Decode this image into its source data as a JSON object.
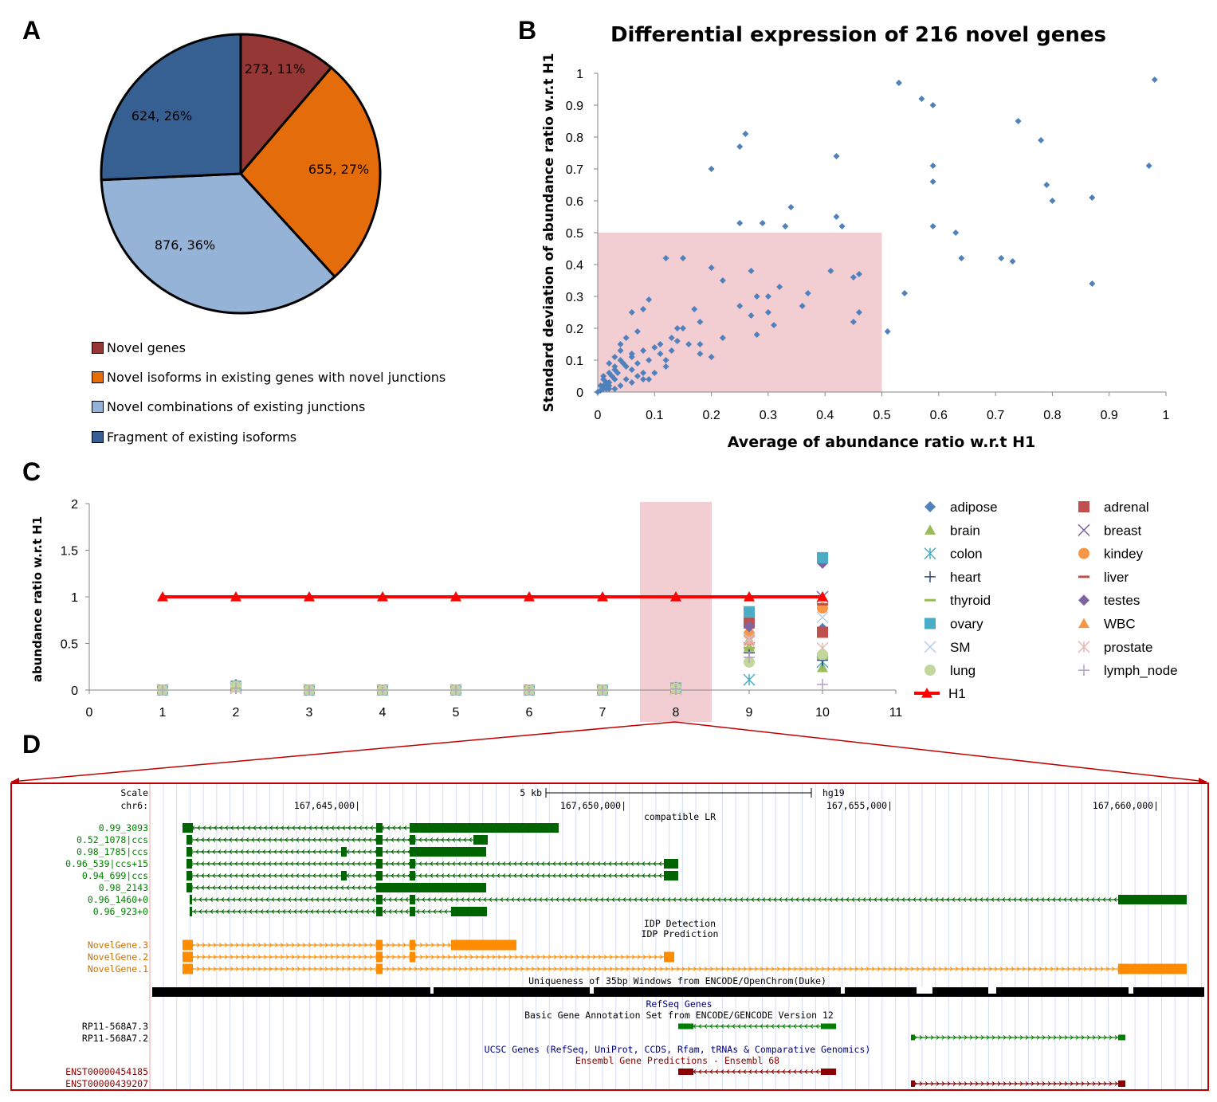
{
  "panels": {
    "a": "A",
    "b": "B",
    "c": "C",
    "d": "D"
  },
  "chart_data": [
    {
      "type": "pie",
      "labels": [
        "Novel genes",
        "Novel isoforms in existing genes with novel junctions",
        "Novel combinations of existing junctions",
        "Fragment of existing isoforms"
      ],
      "values": [
        273,
        655,
        876,
        624
      ],
      "data_labels": [
        "273, 11%",
        "655, 27%",
        "876, 36%",
        "624, 26%"
      ],
      "colors": [
        "#953735",
        "#e46c0a",
        "#95b3d7",
        "#376092"
      ],
      "legend_position": "bottom"
    },
    {
      "type": "scatter",
      "title": "Differential expression of 216 novel genes",
      "xlabel": "Average of abundance  ratio w.r.t H1",
      "ylabel": "Standard deviation of abundance ratio w.r.t H1",
      "xlim": [
        0,
        1
      ],
      "ylim": [
        0,
        1
      ],
      "xticks": [
        "0",
        "0.1",
        "0.2",
        "0.3",
        "0.4",
        "0.5",
        "0.6",
        "0.7",
        "0.8",
        "0.9",
        "1"
      ],
      "yticks": [
        "0",
        "0.1",
        "0.2",
        "0.3",
        "0.4",
        "0.5",
        "0.6",
        "0.7",
        "0.8",
        "0.9",
        "1"
      ],
      "highlight_region": {
        "x": [
          0,
          0.5
        ],
        "y": [
          0,
          0.5
        ],
        "color": "#f2cdd1"
      },
      "marker_color": "#4f81bd",
      "points": [
        [
          0.53,
          0.97
        ],
        [
          0.57,
          0.92
        ],
        [
          0.59,
          0.9
        ],
        [
          0.98,
          0.98
        ],
        [
          0.74,
          0.85
        ],
        [
          0.26,
          0.81
        ],
        [
          0.25,
          0.77
        ],
        [
          0.78,
          0.79
        ],
        [
          0.42,
          0.74
        ],
        [
          0.2,
          0.7
        ],
        [
          0.59,
          0.71
        ],
        [
          0.97,
          0.71
        ],
        [
          0.59,
          0.66
        ],
        [
          0.79,
          0.65
        ],
        [
          0.87,
          0.61
        ],
        [
          0.8,
          0.6
        ],
        [
          0.34,
          0.58
        ],
        [
          0.42,
          0.55
        ],
        [
          0.25,
          0.53
        ],
        [
          0.29,
          0.53
        ],
        [
          0.33,
          0.52
        ],
        [
          0.43,
          0.52
        ],
        [
          0.59,
          0.52
        ],
        [
          0.63,
          0.5
        ],
        [
          0.64,
          0.42
        ],
        [
          0.71,
          0.42
        ],
        [
          0.73,
          0.41
        ],
        [
          0.12,
          0.42
        ],
        [
          0.15,
          0.42
        ],
        [
          0.2,
          0.39
        ],
        [
          0.22,
          0.35
        ],
        [
          0.27,
          0.38
        ],
        [
          0.41,
          0.38
        ],
        [
          0.46,
          0.37
        ],
        [
          0.45,
          0.36
        ],
        [
          0.87,
          0.34
        ],
        [
          0.32,
          0.33
        ],
        [
          0.28,
          0.3
        ],
        [
          0.3,
          0.3
        ],
        [
          0.37,
          0.31
        ],
        [
          0.54,
          0.31
        ],
        [
          0.09,
          0.29
        ],
        [
          0.08,
          0.26
        ],
        [
          0.06,
          0.25
        ],
        [
          0.17,
          0.26
        ],
        [
          0.25,
          0.27
        ],
        [
          0.36,
          0.27
        ],
        [
          0.27,
          0.24
        ],
        [
          0.3,
          0.25
        ],
        [
          0.45,
          0.22
        ],
        [
          0.46,
          0.25
        ],
        [
          0.18,
          0.22
        ],
        [
          0.15,
          0.2
        ],
        [
          0.07,
          0.19
        ],
        [
          0.14,
          0.2
        ],
        [
          0.28,
          0.18
        ],
        [
          0.31,
          0.21
        ],
        [
          0.51,
          0.19
        ],
        [
          0.05,
          0.17
        ],
        [
          0.22,
          0.17
        ],
        [
          0.14,
          0.16
        ],
        [
          0.04,
          0.15
        ],
        [
          0.1,
          0.14
        ],
        [
          0.16,
          0.15
        ],
        [
          0.18,
          0.15
        ],
        [
          0.13,
          0.13
        ],
        [
          0.04,
          0.13
        ],
        [
          0.08,
          0.13
        ],
        [
          0.18,
          0.12
        ],
        [
          0.2,
          0.11
        ],
        [
          0.11,
          0.12
        ],
        [
          0.06,
          0.11
        ],
        [
          0.09,
          0.1
        ],
        [
          0.03,
          0.11
        ],
        [
          0.07,
          0.09
        ],
        [
          0.12,
          0.1
        ],
        [
          0.02,
          0.09
        ],
        [
          0.05,
          0.08
        ],
        [
          0.12,
          0.08
        ],
        [
          0.03,
          0.07
        ],
        [
          0.06,
          0.07
        ],
        [
          0.08,
          0.06
        ],
        [
          0.02,
          0.06
        ],
        [
          0.01,
          0.05
        ],
        [
          0.03,
          0.04
        ],
        [
          0.05,
          0.04
        ],
        [
          0.08,
          0.04
        ],
        [
          0.02,
          0.03
        ],
        [
          0.04,
          0.02
        ],
        [
          0.01,
          0.02
        ],
        [
          0.03,
          0.01
        ],
        [
          0.02,
          0.01
        ],
        [
          0.005,
          0.005
        ],
        [
          0.01,
          0.01
        ],
        [
          0.015,
          0.03
        ],
        [
          0.025,
          0.05
        ],
        [
          0.035,
          0.06
        ],
        [
          0.045,
          0.09
        ],
        [
          0.01,
          0.04
        ],
        [
          0.02,
          0.02
        ],
        [
          0.06,
          0.03
        ],
        [
          0.07,
          0.05
        ],
        [
          0.0,
          0.0
        ],
        [
          0.005,
          0.02
        ],
        [
          0.015,
          0.01
        ],
        [
          0.04,
          0.1
        ],
        [
          0.03,
          0.08
        ],
        [
          0.1,
          0.06
        ],
        [
          0.09,
          0.04
        ],
        [
          0.06,
          0.12
        ],
        [
          0.11,
          0.15
        ],
        [
          0.13,
          0.17
        ]
      ]
    },
    {
      "type": "line",
      "ylabel": "abundance ratio w.r.t H1",
      "xlim": [
        0,
        11
      ],
      "ylim": [
        0,
        2
      ],
      "xticks": [
        "0",
        "1",
        "2",
        "3",
        "4",
        "5",
        "6",
        "7",
        "8",
        "9",
        "10",
        "11"
      ],
      "yticks": [
        "0",
        "0.5",
        "1",
        "1.5",
        "2"
      ],
      "highlight_x": 8,
      "highlight_color": "#f2cdd1",
      "series": [
        {
          "name": "adipose",
          "marker": "diamond",
          "color": "#4f81bd",
          "x": [
            1,
            2,
            3,
            4,
            5,
            6,
            7,
            8,
            9,
            10
          ],
          "values": [
            0,
            0.06,
            0,
            0,
            0,
            0,
            0,
            0.03,
            0.62,
            0.66
          ]
        },
        {
          "name": "adrenal",
          "marker": "square",
          "color": "#c0504d",
          "x": [
            1,
            2,
            3,
            4,
            5,
            6,
            7,
            8,
            9,
            10
          ],
          "values": [
            0,
            0.04,
            0,
            0,
            0,
            0,
            0,
            0.02,
            0.72,
            0.62
          ]
        },
        {
          "name": "brain",
          "marker": "triangle",
          "color": "#9bbb59",
          "x": [
            1,
            2,
            3,
            4,
            5,
            6,
            7,
            8,
            9,
            10
          ],
          "values": [
            0,
            0.05,
            0,
            0,
            0,
            0,
            0,
            0.02,
            0.46,
            0.24
          ]
        },
        {
          "name": "breast",
          "marker": "x",
          "color": "#8064a2",
          "x": [
            1,
            2,
            3,
            4,
            5,
            6,
            7,
            8,
            9,
            10
          ],
          "values": [
            0,
            0.03,
            0,
            0,
            0,
            0,
            0,
            0.01,
            0.66,
            1.0
          ]
        },
        {
          "name": "colon",
          "marker": "star",
          "color": "#4bacc6",
          "x": [
            1,
            2,
            3,
            4,
            5,
            6,
            7,
            8,
            9,
            10
          ],
          "values": [
            0,
            0.02,
            0,
            0,
            0,
            0,
            0,
            0.01,
            0.11,
            0.3
          ]
        },
        {
          "name": "kindey",
          "marker": "circle",
          "color": "#f79646",
          "x": [
            1,
            2,
            3,
            4,
            5,
            6,
            7,
            8,
            9,
            10
          ],
          "values": [
            0,
            0.04,
            0,
            0,
            0,
            0,
            0,
            0.02,
            0.6,
            0.88
          ]
        },
        {
          "name": "heart",
          "marker": "plus",
          "color": "#2c4d75",
          "x": [
            1,
            2,
            3,
            4,
            5,
            6,
            7,
            8,
            9,
            10
          ],
          "values": [
            0,
            0.02,
            0,
            0,
            0,
            0,
            0,
            0.01,
            0.4,
            0.32
          ]
        },
        {
          "name": "liver",
          "marker": "dash",
          "color": "#c0504d",
          "x": [
            1,
            2,
            3,
            4,
            5,
            6,
            7,
            8,
            9,
            10
          ],
          "values": [
            0,
            0.03,
            0,
            0,
            0,
            0,
            0,
            0.01,
            0.5,
            0.92
          ]
        },
        {
          "name": "thyroid",
          "marker": "dash",
          "color": "#9bbb59",
          "x": [
            1,
            2,
            3,
            4,
            5,
            6,
            7,
            8,
            9,
            10
          ],
          "values": [
            0,
            0.02,
            0,
            0,
            0,
            0,
            0,
            0.01,
            0.45,
            0.34
          ]
        },
        {
          "name": "testes",
          "marker": "diamond",
          "color": "#8064a2",
          "x": [
            1,
            2,
            3,
            4,
            5,
            6,
            7,
            8,
            9,
            10
          ],
          "values": [
            0,
            0.05,
            0,
            0,
            0,
            0,
            0,
            0.02,
            0.68,
            1.36
          ]
        },
        {
          "name": "ovary",
          "marker": "square",
          "color": "#4bacc6",
          "x": [
            1,
            2,
            3,
            4,
            5,
            6,
            7,
            8,
            9,
            10
          ],
          "values": [
            0,
            0.04,
            0,
            0,
            0,
            0,
            0,
            0.02,
            0.84,
            1.42
          ]
        },
        {
          "name": "WBC",
          "marker": "triangle",
          "color": "#f79646",
          "x": [
            1,
            2,
            3,
            4,
            5,
            6,
            7,
            8,
            9,
            10
          ],
          "values": [
            0,
            0.03,
            0,
            0,
            0,
            0,
            0,
            0.01,
            0.54,
            1.0
          ]
        },
        {
          "name": "SM",
          "marker": "x",
          "color": "#b9cde5",
          "x": [
            1,
            2,
            3,
            4,
            5,
            6,
            7,
            8,
            9,
            10
          ],
          "values": [
            0,
            0.03,
            0,
            0,
            0,
            0,
            0,
            0.01,
            0.55,
            0.78
          ]
        },
        {
          "name": "prostate",
          "marker": "star",
          "color": "#e6b9b8",
          "x": [
            1,
            2,
            3,
            4,
            5,
            6,
            7,
            8,
            9,
            10
          ],
          "values": [
            0,
            0.02,
            0,
            0,
            0,
            0,
            0,
            0.01,
            0.52,
            0.45
          ]
        },
        {
          "name": "lung",
          "marker": "circle",
          "color": "#c3d69b",
          "x": [
            1,
            2,
            3,
            4,
            5,
            6,
            7,
            8,
            9,
            10
          ],
          "values": [
            0,
            0.04,
            0,
            0,
            0,
            0,
            0,
            0.02,
            0.3,
            0.38
          ]
        },
        {
          "name": "lymph_node",
          "marker": "plus",
          "color": "#b3a2c7",
          "x": [
            1,
            2,
            3,
            4,
            5,
            6,
            7,
            8,
            9,
            10
          ],
          "values": [
            0,
            0.02,
            0,
            0,
            0,
            0,
            0,
            0.01,
            0.35,
            0.06
          ]
        },
        {
          "name": "H1",
          "marker": "triangle-line",
          "color": "#ff0000",
          "x": [
            1,
            2,
            3,
            4,
            5,
            6,
            7,
            8,
            9,
            10
          ],
          "values": [
            1,
            1,
            1,
            1,
            1,
            1,
            1,
            1,
            1,
            1
          ]
        }
      ]
    }
  ],
  "browser": {
    "scale_label": "Scale",
    "chrom_label": "chr6:",
    "scale_bar_text": "5 kb",
    "assembly": "hg19",
    "coords": [
      "167,645,000|",
      "167,650,000|",
      "167,655,000|",
      "167,660,000|"
    ],
    "tracks": {
      "compatible": "compatible LR",
      "idp_detection": "IDP Detection",
      "idp_prediction": "IDP Prediction",
      "uniqueness": "Uniqueness of 35bp Windows from ENCODE/OpenChrom(Duke)",
      "refseq": "RefSeq Genes",
      "gencode": "Basic Gene Annotation Set from ENCODE/GENCODE Version 12",
      "ucsc": "UCSC Genes (RefSeq, UniProt, CCDS, Rfam, tRNAs & Comparative Genomics)",
      "ensembl": "Ensembl Gene Predictions - Ensembl 68"
    },
    "lr_labels": [
      "0.99_3093",
      "0.52_1078|ccs",
      "0.98_1785|ccs",
      "0.96_539|ccs+15",
      "0.94_699|ccs",
      "0.98_2143",
      "0.96_1460+0",
      "0.96_923+0"
    ],
    "novel_labels": [
      "NovelGene.3",
      "NovelGene.2",
      "NovelGene.1"
    ],
    "gencode_labels": [
      "RP11-568A7.3",
      "RP11-568A7.2"
    ],
    "ensembl_labels": [
      "ENST00000454185",
      "ENST00000439207"
    ],
    "colors": {
      "lr": "#006400",
      "novel": "#ff8c00",
      "gencode": "#008000",
      "ucsc_text": "#000080",
      "ensembl": "#8b0000",
      "frame": "#c00000"
    }
  }
}
